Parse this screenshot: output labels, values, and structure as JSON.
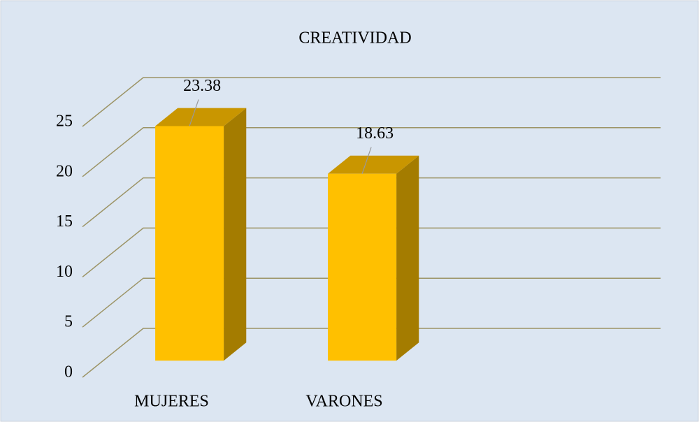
{
  "chart_data": {
    "type": "bar3d",
    "title": "CREATIVIDAD",
    "categories": [
      "MUJERES",
      "VARONES"
    ],
    "values": [
      23.38,
      18.63
    ],
    "color": "#ffc000",
    "ylim": [
      0,
      25
    ],
    "yticks": [
      0,
      5,
      10,
      15,
      20,
      25
    ],
    "grid": true
  }
}
